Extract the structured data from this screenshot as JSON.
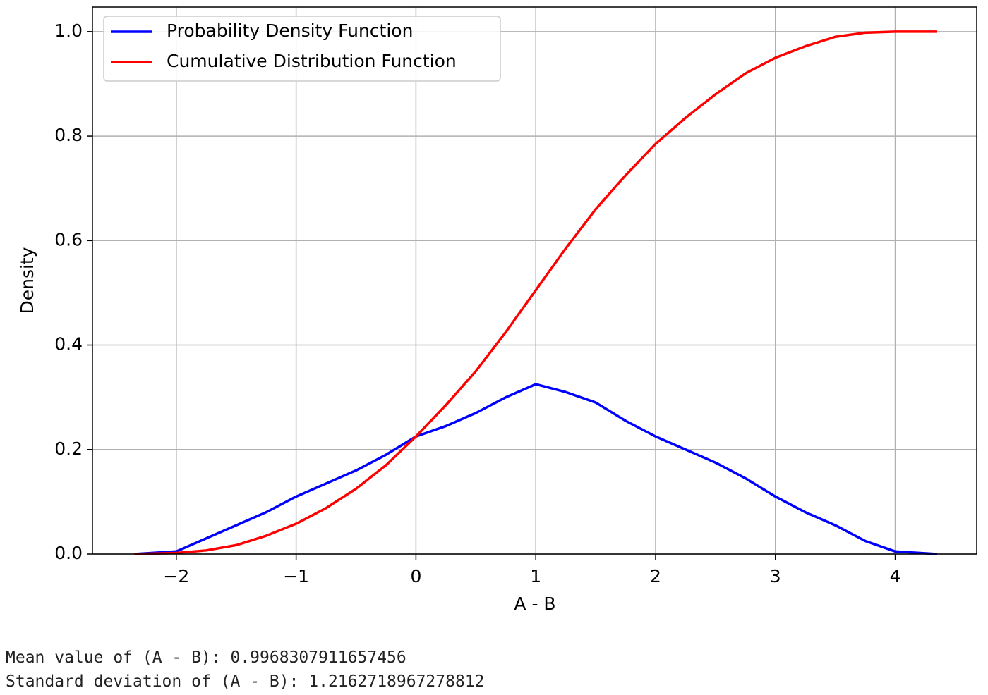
{
  "chart_data": {
    "type": "line",
    "xlabel": "A - B",
    "ylabel": "Density",
    "x": [
      -2.35,
      -2,
      -1.75,
      -1.5,
      -1.25,
      -1,
      -0.75,
      -0.5,
      -0.25,
      0,
      0.25,
      0.5,
      0.75,
      1,
      1.25,
      1.5,
      1.75,
      2,
      2.25,
      2.5,
      2.75,
      3,
      3.25,
      3.5,
      3.75,
      4,
      4.35
    ],
    "series": [
      {
        "name": "Probability Density Function",
        "color": "#0000ff",
        "values": [
          0,
          0.005,
          0.03,
          0.055,
          0.08,
          0.11,
          0.135,
          0.16,
          0.19,
          0.225,
          0.245,
          0.27,
          0.3,
          0.325,
          0.31,
          0.29,
          0.255,
          0.225,
          0.2,
          0.175,
          0.145,
          0.11,
          0.08,
          0.055,
          0.025,
          0.005,
          0
        ]
      },
      {
        "name": "Cumulative Distribution Function",
        "color": "#ff0000",
        "values": [
          0,
          0.002,
          0.007,
          0.017,
          0.035,
          0.058,
          0.088,
          0.125,
          0.17,
          0.225,
          0.285,
          0.35,
          0.425,
          0.505,
          0.585,
          0.66,
          0.725,
          0.785,
          0.835,
          0.88,
          0.92,
          0.95,
          0.972,
          0.99,
          0.998,
          1.0,
          1.0
        ]
      }
    ],
    "xlim": [
      -2.7,
      4.68
    ],
    "ylim": [
      0,
      1.047
    ],
    "xticks": [
      {
        "value": -2,
        "label": "−2"
      },
      {
        "value": -1,
        "label": "−1"
      },
      0,
      1,
      2,
      3,
      4
    ],
    "yticks": [
      {
        "value": 0,
        "label": "0.0"
      },
      0.2,
      0.4,
      0.6,
      0.8,
      {
        "value": 1,
        "label": "1.0"
      }
    ],
    "grid": true,
    "legend": "upper left"
  },
  "output": [
    "Mean value of (A - B): 0.9968307911657456",
    "Standard deviation of (A - B): 1.2162718967278812"
  ]
}
